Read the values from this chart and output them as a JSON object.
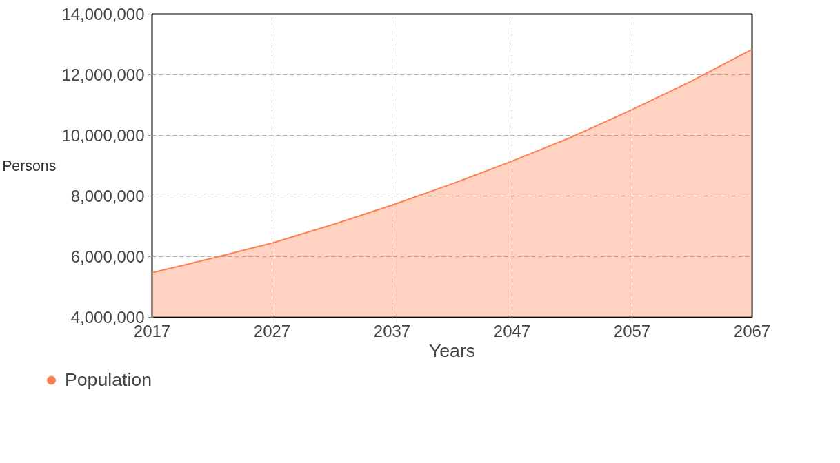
{
  "chart_data": {
    "type": "area",
    "xlabel": "Years",
    "ylabel": "Persons",
    "x": [
      2017,
      2022,
      2027,
      2032,
      2037,
      2042,
      2047,
      2052,
      2057,
      2062,
      2067
    ],
    "series": [
      {
        "name": "Population",
        "color": "#ff7f50",
        "values": [
          5470000,
          5950000,
          6450000,
          7050000,
          7700000,
          8400000,
          9150000,
          9950000,
          10850000,
          11800000,
          12840000
        ]
      }
    ],
    "xlim": [
      2017,
      2067
    ],
    "xticks": [
      2017,
      2027,
      2037,
      2047,
      2057,
      2067
    ],
    "ylim": [
      4000000,
      14000000
    ],
    "yticks": [
      {
        "value": 4000000,
        "label": "4,000,000"
      },
      {
        "value": 6000000,
        "label": "6,000,000"
      },
      {
        "value": 8000000,
        "label": "8,000,000"
      },
      {
        "value": 10000000,
        "label": "10,000,000"
      },
      {
        "value": 12000000,
        "label": "12,000,000"
      },
      {
        "value": 14000000,
        "label": "14,000,000"
      }
    ],
    "grid": true,
    "legend": "bottom",
    "marker": "none",
    "line_style": "solid"
  }
}
